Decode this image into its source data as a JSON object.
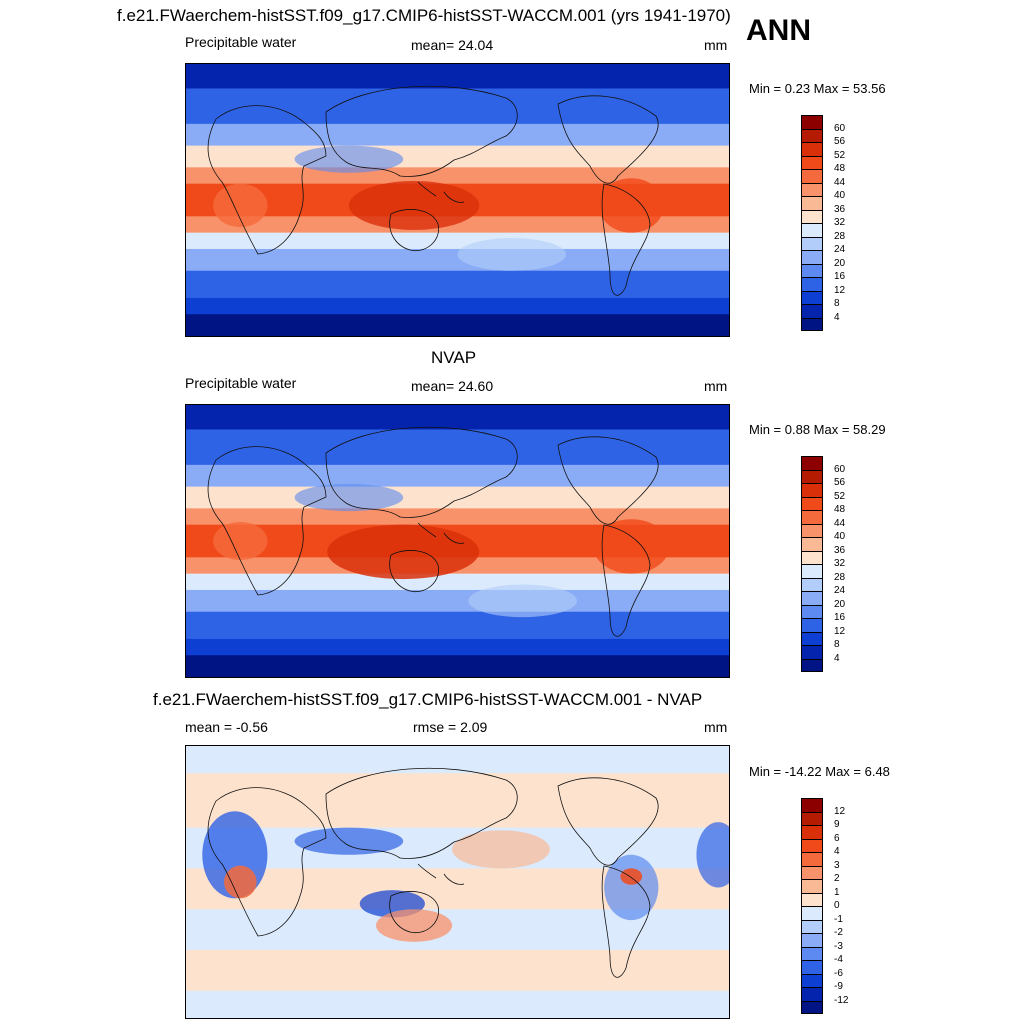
{
  "header": {
    "title": "f.e21.FWaerchem-histSST.f09_g17.CMIP6-histSST-WACCM.001 (yrs 1941-1970)",
    "season": "ANN"
  },
  "panels": [
    {
      "id": "model",
      "field_label": "Precipitable water",
      "mean_text": "mean=  24.04",
      "units": "mm",
      "minmax_text": "Min =   0.23 Max =  53.56",
      "colorbar": {
        "levels": [
          "60",
          "56",
          "52",
          "48",
          "44",
          "40",
          "36",
          "32",
          "28",
          "24",
          "20",
          "16",
          "12",
          "8",
          "4"
        ],
        "colors": [
          "#8c0000",
          "#b51b00",
          "#d9300a",
          "#f04a1a",
          "#f56a3c",
          "#f8926a",
          "#fab995",
          "#fde2cd",
          "#dbeafc",
          "#b2cdfa",
          "#8aacf6",
          "#5c8af0",
          "#2f63e6",
          "#0d3fd2",
          "#0424ae",
          "#011484"
        ]
      }
    },
    {
      "id": "obs",
      "title": "NVAP",
      "field_label": "Precipitable water",
      "mean_text": "mean=  24.60",
      "units": "mm",
      "minmax_text": "Min =   0.88 Max =  58.29",
      "colorbar": {
        "levels": [
          "60",
          "56",
          "52",
          "48",
          "44",
          "40",
          "36",
          "32",
          "28",
          "24",
          "20",
          "16",
          "12",
          "8",
          "4"
        ],
        "colors": [
          "#8c0000",
          "#b51b00",
          "#d9300a",
          "#f04a1a",
          "#f56a3c",
          "#f8926a",
          "#fab995",
          "#fde2cd",
          "#dbeafc",
          "#b2cdfa",
          "#8aacf6",
          "#5c8af0",
          "#2f63e6",
          "#0d3fd2",
          "#0424ae",
          "#011484"
        ]
      }
    },
    {
      "id": "diff",
      "title": "f.e21.FWaerchem-histSST.f09_g17.CMIP6-histSST-WACCM.001 - NVAP",
      "mean_text": "mean =  -0.56",
      "rmse_text": "rmse =   2.09",
      "units": "mm",
      "minmax_text": "Min = -14.22 Max =   6.48",
      "colorbar": {
        "levels": [
          "12",
          "9",
          "6",
          "4",
          "3",
          "2",
          "1",
          "0",
          "-1",
          "-2",
          "-3",
          "-4",
          "-6",
          "-9",
          "-12"
        ],
        "colors": [
          "#8c0000",
          "#b51b00",
          "#d9300a",
          "#f04a1a",
          "#f56a3c",
          "#f8926a",
          "#fab995",
          "#fde2cd",
          "#dbeafc",
          "#b2cdfa",
          "#8aacf6",
          "#5c8af0",
          "#2f63e6",
          "#0d3fd2",
          "#0424ae",
          "#011484"
        ]
      }
    }
  ]
}
